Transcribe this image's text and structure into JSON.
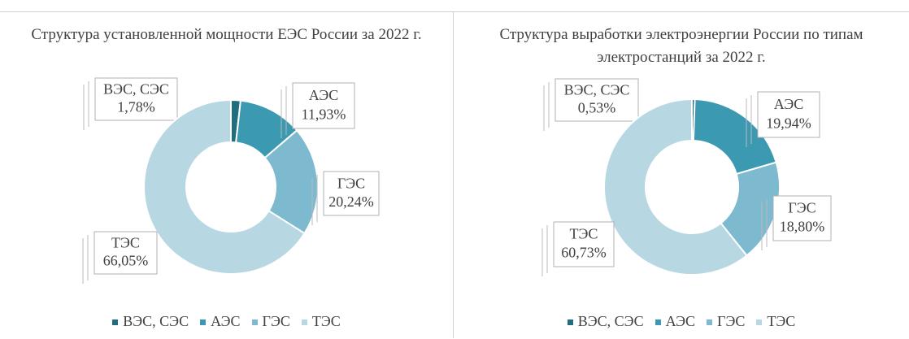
{
  "chart_data": [
    {
      "type": "pie",
      "title": "Структура установленной мощности ЕЭС России за 2022 г.",
      "categories": [
        "ВЭС, СЭС",
        "АЭС",
        "ГЭС",
        "ТЭС"
      ],
      "values": [
        1.78,
        11.93,
        20.24,
        66.05
      ],
      "value_labels": [
        "1,78%",
        "11,93%",
        "20,24%",
        "66,05%"
      ],
      "colors": [
        "#1f6e80",
        "#3b9ab2",
        "#7dbad0",
        "#b7d7e3"
      ]
    },
    {
      "type": "pie",
      "title": "Структура выработки электроэнергии России по типам электростанций за 2022 г.",
      "categories": [
        "ВЭС, СЭС",
        "АЭС",
        "ГЭС",
        "ТЭС"
      ],
      "values": [
        0.53,
        19.94,
        18.8,
        60.73
      ],
      "value_labels": [
        "0,53%",
        "19,94%",
        "18,80%",
        "60,73%"
      ],
      "colors": [
        "#1f6e80",
        "#3b9ab2",
        "#7dbad0",
        "#b7d7e3"
      ]
    }
  ]
}
